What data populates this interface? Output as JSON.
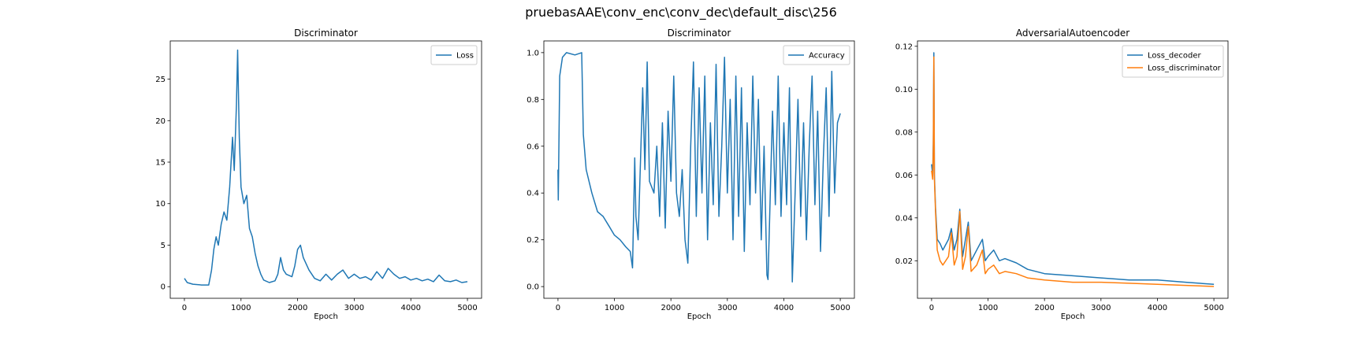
{
  "figure": {
    "suptitle": "pruebasAAE\\conv_enc\\conv_dec\\default_disc\\256"
  },
  "chart_data": [
    {
      "type": "line",
      "title": "Discriminator",
      "xlabel": "Epoch",
      "ylabel": "",
      "xlim": [
        -250,
        5250
      ],
      "ylim": [
        -1.4,
        29.6
      ],
      "xticks": [
        0,
        1000,
        2000,
        3000,
        4000,
        5000
      ],
      "yticks": [
        0,
        5,
        10,
        15,
        20,
        25
      ],
      "legend": "top-right",
      "series": [
        {
          "name": "Loss",
          "color": "#1f77b4",
          "points": [
            [
              0,
              1.0
            ],
            [
              50,
              0.5
            ],
            [
              150,
              0.3
            ],
            [
              300,
              0.2
            ],
            [
              430,
              0.2
            ],
            [
              480,
              2.0
            ],
            [
              520,
              4.5
            ],
            [
              560,
              6.0
            ],
            [
              600,
              5.0
            ],
            [
              650,
              7.5
            ],
            [
              700,
              9.0
            ],
            [
              750,
              8.0
            ],
            [
              800,
              12.0
            ],
            [
              850,
              18.0
            ],
            [
              880,
              14.0
            ],
            [
              920,
              22.0
            ],
            [
              940,
              28.5
            ],
            [
              970,
              18.0
            ],
            [
              1000,
              12.0
            ],
            [
              1050,
              10.0
            ],
            [
              1100,
              11.0
            ],
            [
              1150,
              7.0
            ],
            [
              1200,
              6.0
            ],
            [
              1250,
              4.0
            ],
            [
              1300,
              2.5
            ],
            [
              1350,
              1.5
            ],
            [
              1400,
              0.8
            ],
            [
              1500,
              0.5
            ],
            [
              1600,
              0.7
            ],
            [
              1650,
              1.5
            ],
            [
              1700,
              3.5
            ],
            [
              1750,
              2.0
            ],
            [
              1800,
              1.5
            ],
            [
              1900,
              1.2
            ],
            [
              1950,
              2.5
            ],
            [
              2000,
              4.5
            ],
            [
              2050,
              5.0
            ],
            [
              2100,
              3.5
            ],
            [
              2200,
              2.0
            ],
            [
              2300,
              1.0
            ],
            [
              2400,
              0.7
            ],
            [
              2500,
              1.5
            ],
            [
              2600,
              0.8
            ],
            [
              2700,
              1.5
            ],
            [
              2800,
              2.0
            ],
            [
              2900,
              1.0
            ],
            [
              3000,
              1.5
            ],
            [
              3100,
              1.0
            ],
            [
              3200,
              1.2
            ],
            [
              3300,
              0.8
            ],
            [
              3400,
              1.8
            ],
            [
              3500,
              1.0
            ],
            [
              3600,
              2.2
            ],
            [
              3700,
              1.5
            ],
            [
              3800,
              1.0
            ],
            [
              3900,
              1.2
            ],
            [
              4000,
              0.8
            ],
            [
              4100,
              1.0
            ],
            [
              4200,
              0.7
            ],
            [
              4300,
              0.9
            ],
            [
              4400,
              0.6
            ],
            [
              4500,
              1.4
            ],
            [
              4600,
              0.7
            ],
            [
              4700,
              0.6
            ],
            [
              4800,
              0.8
            ],
            [
              4900,
              0.5
            ],
            [
              5000,
              0.6
            ]
          ]
        }
      ]
    },
    {
      "type": "line",
      "title": "Discriminator",
      "xlabel": "Epoch",
      "ylabel": "",
      "xlim": [
        -250,
        5250
      ],
      "ylim": [
        -0.05,
        1.05
      ],
      "xticks": [
        0,
        1000,
        2000,
        3000,
        4000,
        5000
      ],
      "yticks": [
        0.0,
        0.2,
        0.4,
        0.6,
        0.8,
        1.0
      ],
      "legend": "top-right",
      "series": [
        {
          "name": "Accuracy",
          "color": "#1f77b4",
          "points": [
            [
              0,
              0.5
            ],
            [
              5,
              0.37
            ],
            [
              30,
              0.9
            ],
            [
              80,
              0.98
            ],
            [
              150,
              1.0
            ],
            [
              300,
              0.99
            ],
            [
              420,
              1.0
            ],
            [
              450,
              0.65
            ],
            [
              500,
              0.5
            ],
            [
              600,
              0.4
            ],
            [
              700,
              0.32
            ],
            [
              800,
              0.3
            ],
            [
              900,
              0.26
            ],
            [
              1000,
              0.22
            ],
            [
              1100,
              0.2
            ],
            [
              1200,
              0.17
            ],
            [
              1280,
              0.15
            ],
            [
              1320,
              0.08
            ],
            [
              1360,
              0.55
            ],
            [
              1380,
              0.3
            ],
            [
              1420,
              0.2
            ],
            [
              1500,
              0.85
            ],
            [
              1540,
              0.5
            ],
            [
              1580,
              0.96
            ],
            [
              1620,
              0.45
            ],
            [
              1700,
              0.4
            ],
            [
              1750,
              0.6
            ],
            [
              1800,
              0.3
            ],
            [
              1850,
              0.7
            ],
            [
              1900,
              0.25
            ],
            [
              1950,
              0.75
            ],
            [
              2000,
              0.45
            ],
            [
              2050,
              0.9
            ],
            [
              2100,
              0.4
            ],
            [
              2150,
              0.3
            ],
            [
              2200,
              0.5
            ],
            [
              2250,
              0.2
            ],
            [
              2300,
              0.1
            ],
            [
              2350,
              0.6
            ],
            [
              2400,
              0.96
            ],
            [
              2450,
              0.3
            ],
            [
              2500,
              0.85
            ],
            [
              2550,
              0.4
            ],
            [
              2600,
              0.9
            ],
            [
              2650,
              0.2
            ],
            [
              2700,
              0.7
            ],
            [
              2750,
              0.35
            ],
            [
              2800,
              0.95
            ],
            [
              2850,
              0.3
            ],
            [
              2900,
              0.6
            ],
            [
              2950,
              0.98
            ],
            [
              3000,
              0.4
            ],
            [
              3050,
              0.8
            ],
            [
              3100,
              0.2
            ],
            [
              3150,
              0.9
            ],
            [
              3200,
              0.3
            ],
            [
              3250,
              0.85
            ],
            [
              3300,
              0.15
            ],
            [
              3350,
              0.7
            ],
            [
              3400,
              0.35
            ],
            [
              3450,
              0.9
            ],
            [
              3500,
              0.4
            ],
            [
              3550,
              0.8
            ],
            [
              3600,
              0.2
            ],
            [
              3650,
              0.6
            ],
            [
              3700,
              0.05
            ],
            [
              3720,
              0.03
            ],
            [
              3760,
              0.4
            ],
            [
              3800,
              0.75
            ],
            [
              3850,
              0.35
            ],
            [
              3900,
              0.9
            ],
            [
              3950,
              0.3
            ],
            [
              4000,
              0.7
            ],
            [
              4050,
              0.35
            ],
            [
              4100,
              0.85
            ],
            [
              4150,
              0.02
            ],
            [
              4200,
              0.4
            ],
            [
              4250,
              0.8
            ],
            [
              4300,
              0.3
            ],
            [
              4350,
              0.7
            ],
            [
              4400,
              0.2
            ],
            [
              4450,
              0.6
            ],
            [
              4500,
              0.9
            ],
            [
              4550,
              0.35
            ],
            [
              4600,
              0.75
            ],
            [
              4650,
              0.15
            ],
            [
              4700,
              0.55
            ],
            [
              4750,
              0.85
            ],
            [
              4800,
              0.3
            ],
            [
              4850,
              0.92
            ],
            [
              4900,
              0.4
            ],
            [
              4950,
              0.7
            ],
            [
              5000,
              0.74
            ]
          ]
        }
      ]
    },
    {
      "type": "line",
      "title": "AdversarialAutoencoder",
      "xlabel": "Epoch",
      "ylabel": "",
      "xlim": [
        -250,
        5250
      ],
      "ylim": [
        0.0025,
        0.1225
      ],
      "xticks": [
        0,
        1000,
        2000,
        3000,
        4000,
        5000
      ],
      "yticks": [
        0.02,
        0.04,
        0.06,
        0.08,
        0.1,
        0.12
      ],
      "legend": "top-right",
      "series": [
        {
          "name": "Loss_decoder",
          "color": "#1f77b4",
          "points": [
            [
              0,
              0.065
            ],
            [
              20,
              0.06
            ],
            [
              30,
              0.075
            ],
            [
              40,
              0.117
            ],
            [
              50,
              0.06
            ],
            [
              70,
              0.045
            ],
            [
              100,
              0.03
            ],
            [
              150,
              0.028
            ],
            [
              200,
              0.025
            ],
            [
              300,
              0.03
            ],
            [
              350,
              0.035
            ],
            [
              400,
              0.025
            ],
            [
              450,
              0.03
            ],
            [
              500,
              0.044
            ],
            [
              550,
              0.022
            ],
            [
              600,
              0.03
            ],
            [
              650,
              0.038
            ],
            [
              700,
              0.02
            ],
            [
              800,
              0.025
            ],
            [
              900,
              0.03
            ],
            [
              950,
              0.02
            ],
            [
              1000,
              0.022
            ],
            [
              1100,
              0.025
            ],
            [
              1200,
              0.02
            ],
            [
              1300,
              0.021
            ],
            [
              1500,
              0.019
            ],
            [
              1700,
              0.016
            ],
            [
              2000,
              0.014
            ],
            [
              2500,
              0.013
            ],
            [
              3000,
              0.012
            ],
            [
              3500,
              0.011
            ],
            [
              4000,
              0.011
            ],
            [
              4500,
              0.01
            ],
            [
              5000,
              0.009
            ]
          ]
        },
        {
          "name": "Loss_discriminator",
          "color": "#ff7f0e",
          "points": [
            [
              0,
              0.062
            ],
            [
              20,
              0.058
            ],
            [
              30,
              0.072
            ],
            [
              40,
              0.115
            ],
            [
              50,
              0.058
            ],
            [
              70,
              0.043
            ],
            [
              100,
              0.025
            ],
            [
              150,
              0.02
            ],
            [
              200,
              0.018
            ],
            [
              300,
              0.022
            ],
            [
              350,
              0.033
            ],
            [
              400,
              0.018
            ],
            [
              450,
              0.022
            ],
            [
              500,
              0.043
            ],
            [
              550,
              0.016
            ],
            [
              600,
              0.022
            ],
            [
              650,
              0.036
            ],
            [
              700,
              0.015
            ],
            [
              800,
              0.018
            ],
            [
              900,
              0.025
            ],
            [
              950,
              0.014
            ],
            [
              1000,
              0.016
            ],
            [
              1100,
              0.018
            ],
            [
              1200,
              0.014
            ],
            [
              1300,
              0.015
            ],
            [
              1500,
              0.014
            ],
            [
              1700,
              0.012
            ],
            [
              2000,
              0.011
            ],
            [
              2500,
              0.01
            ],
            [
              3000,
              0.01
            ],
            [
              3500,
              0.0095
            ],
            [
              4000,
              0.009
            ],
            [
              4500,
              0.0085
            ],
            [
              5000,
              0.008
            ]
          ]
        }
      ]
    }
  ]
}
